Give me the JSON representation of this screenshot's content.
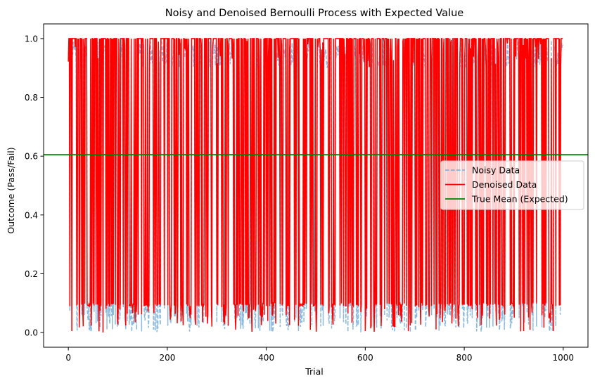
{
  "chart_data": {
    "type": "line",
    "title": "Noisy and Denoised Bernoulli Process with Expected Value",
    "xlabel": "Trial",
    "ylabel": "Outcome (Pass/Fail)",
    "xlim": [
      -50,
      1050
    ],
    "ylim": [
      -0.05,
      1.05
    ],
    "x_ticks": [
      0,
      200,
      400,
      600,
      800,
      1000
    ],
    "y_ticks": [
      0.0,
      0.2,
      0.4,
      0.6,
      0.8,
      1.0
    ],
    "x_tick_labels": [
      "0",
      "200",
      "400",
      "600",
      "800",
      "1000"
    ],
    "y_tick_labels": [
      "0.0",
      "0.2",
      "0.4",
      "0.6",
      "0.8",
      "1.0"
    ],
    "grid": false,
    "legend_position": "center-right",
    "series": [
      {
        "name": "Noisy Data",
        "style": "dashed",
        "color": "#7fb2d9",
        "x_range": [
          0,
          999
        ],
        "level_low": [
          0.0,
          0.1
        ],
        "level_high": [
          0.9,
          1.0
        ]
      },
      {
        "name": "Denoised Data",
        "style": "solid",
        "color": "#ff0000",
        "x_range": [
          0,
          999
        ],
        "level_low": [
          0.0,
          0.1
        ],
        "level_high": [
          0.9,
          1.0
        ]
      },
      {
        "name": "True Mean (Expected)",
        "style": "solid",
        "color": "#008000",
        "value": 0.605
      }
    ]
  }
}
